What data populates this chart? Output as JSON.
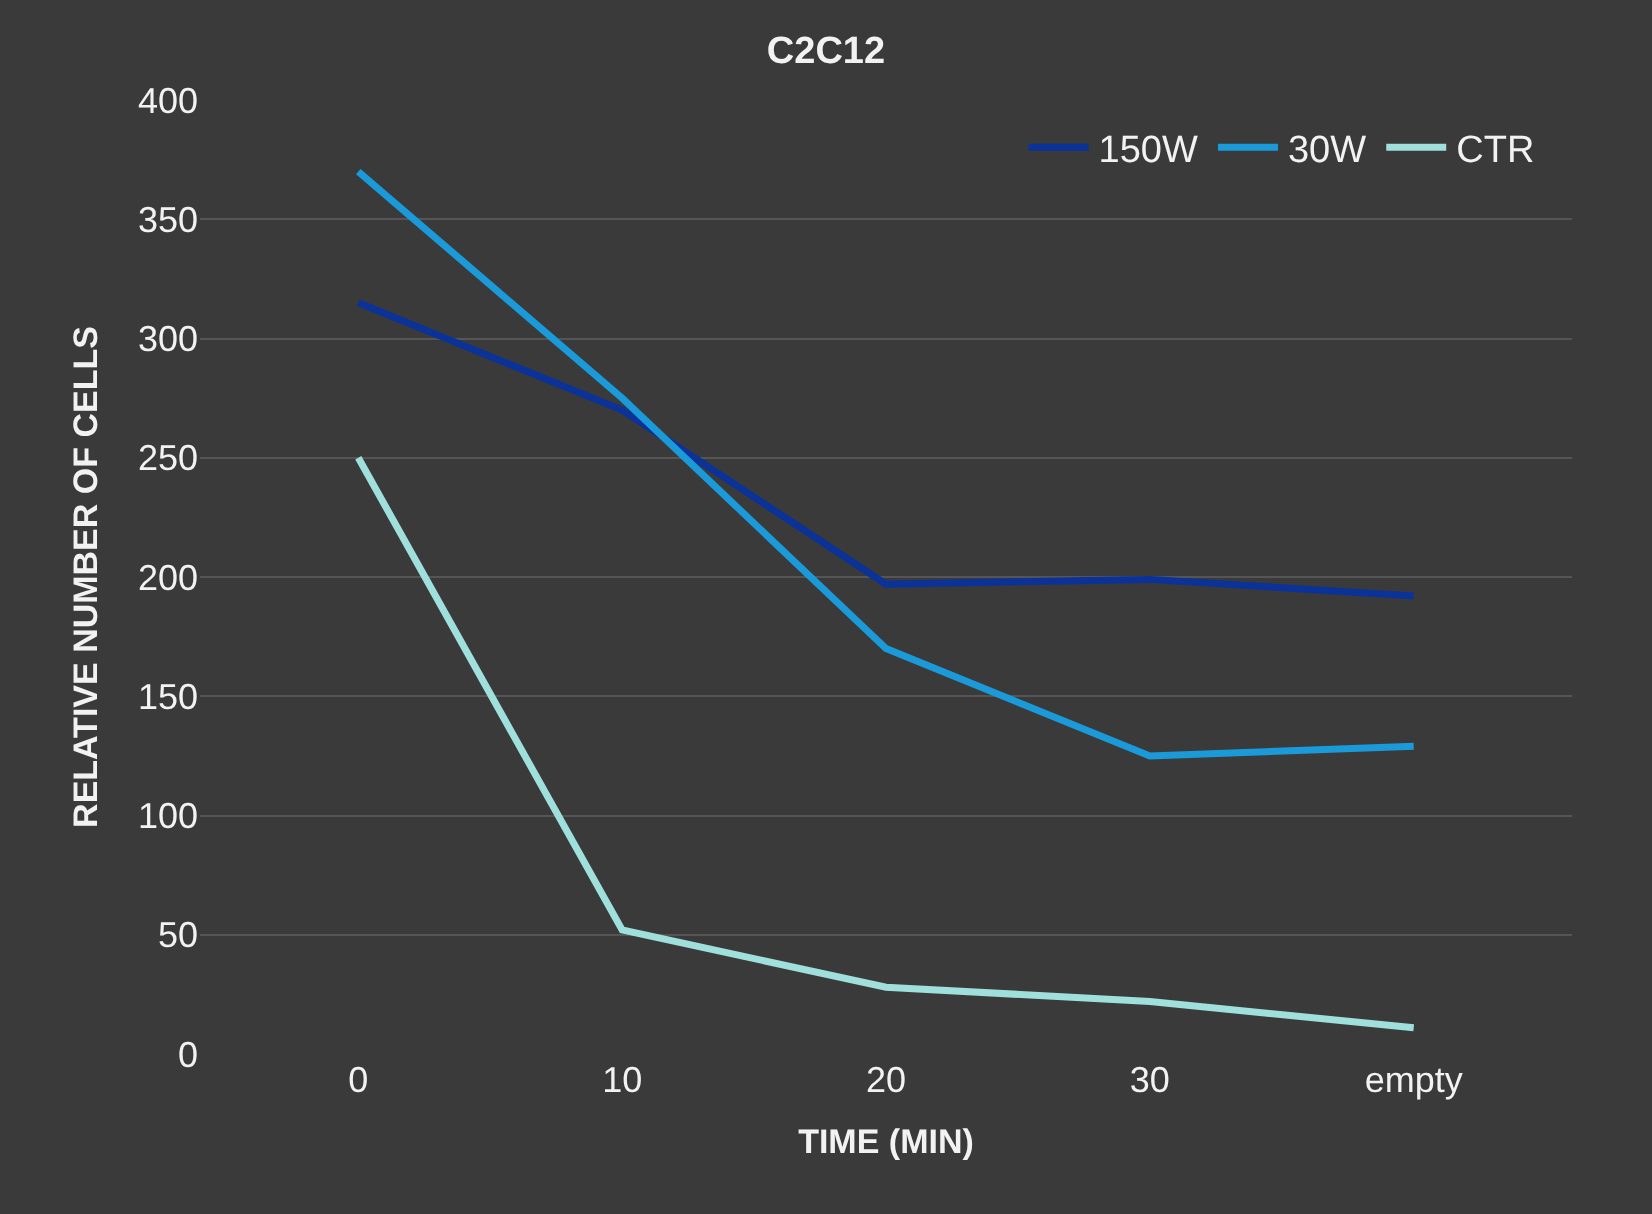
{
  "chart_data": {
    "type": "line",
    "title": "C2C12",
    "xlabel": "TIME (MIN)",
    "ylabel": "RELATIVE NUMBER OF CELLS",
    "categories": [
      "0",
      "10",
      "20",
      "30",
      "empty"
    ],
    "series": [
      {
        "name": "150W",
        "color": "#0a3299",
        "values": [
          315,
          270,
          197,
          199,
          192
        ]
      },
      {
        "name": "30W",
        "color": "#1b9ad9",
        "values": [
          370,
          275,
          170,
          125,
          129
        ]
      },
      {
        "name": "CTR",
        "color": "#9fe0dc",
        "values": [
          250,
          52,
          28,
          22,
          11
        ]
      }
    ],
    "ylim": [
      0,
      400
    ],
    "yticks": [
      0,
      50,
      100,
      150,
      200,
      250,
      300,
      350,
      400
    ],
    "grid": "y",
    "legend": "top right",
    "marker": "none",
    "line_style": "solid"
  }
}
